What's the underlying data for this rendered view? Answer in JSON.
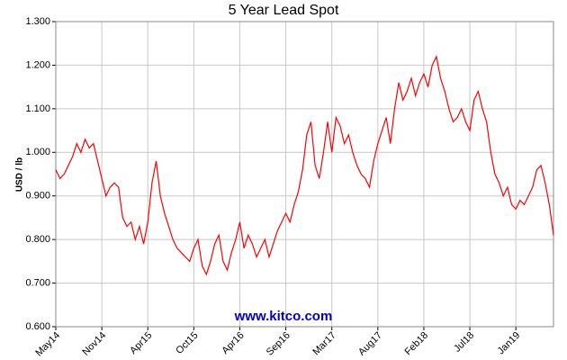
{
  "chart_data": {
    "type": "line",
    "title": "5 Year Lead Spot",
    "y_label": "USD / lb",
    "watermark": "www.kitco.com",
    "color": "#ff0000",
    "grid": true,
    "ylim": [
      0.6,
      1.3
    ],
    "yticks": [
      {
        "value": 0.6,
        "label": "0.600"
      },
      {
        "value": 0.7,
        "label": "0.700"
      },
      {
        "value": 0.8,
        "label": "0.800"
      },
      {
        "value": 0.9,
        "label": "0.900"
      },
      {
        "value": 1.0,
        "label": "1.000"
      },
      {
        "value": 1.1,
        "label": "1.100"
      },
      {
        "value": 1.2,
        "label": "1.200"
      },
      {
        "value": 1.3,
        "label": "1.300"
      }
    ],
    "categories": [
      "May14",
      null,
      null,
      null,
      null,
      null,
      null,
      null,
      null,
      null,
      null,
      "Nov14",
      null,
      null,
      null,
      null,
      null,
      null,
      null,
      null,
      null,
      null,
      "Apr15",
      null,
      null,
      null,
      null,
      null,
      null,
      null,
      null,
      null,
      null,
      "Oct15",
      null,
      null,
      null,
      null,
      null,
      null,
      null,
      null,
      null,
      null,
      "Apr16",
      null,
      null,
      null,
      null,
      null,
      null,
      null,
      null,
      null,
      null,
      "Sep16",
      null,
      null,
      null,
      null,
      null,
      null,
      null,
      null,
      null,
      null,
      "Mar17",
      null,
      null,
      null,
      null,
      null,
      null,
      null,
      null,
      null,
      null,
      "Aug17",
      null,
      null,
      null,
      null,
      null,
      null,
      null,
      null,
      null,
      null,
      "Feb18",
      null,
      null,
      null,
      null,
      null,
      null,
      null,
      null,
      null,
      null,
      "Jul18",
      null,
      null,
      null,
      null,
      null,
      null,
      null,
      null,
      null,
      null,
      "Jan19",
      null,
      null,
      null,
      null,
      null,
      null,
      null,
      null,
      null
    ],
    "values": [
      0.96,
      0.94,
      0.95,
      0.97,
      0.99,
      1.02,
      1.0,
      1.03,
      1.01,
      1.02,
      0.98,
      0.94,
      0.9,
      0.92,
      0.93,
      0.92,
      0.85,
      0.83,
      0.84,
      0.8,
      0.83,
      0.79,
      0.84,
      0.93,
      0.98,
      0.9,
      0.86,
      0.83,
      0.8,
      0.78,
      0.77,
      0.76,
      0.75,
      0.78,
      0.8,
      0.74,
      0.72,
      0.75,
      0.79,
      0.81,
      0.75,
      0.73,
      0.77,
      0.8,
      0.84,
      0.78,
      0.81,
      0.79,
      0.76,
      0.78,
      0.8,
      0.76,
      0.79,
      0.82,
      0.84,
      0.86,
      0.84,
      0.88,
      0.91,
      0.96,
      1.04,
      1.07,
      0.97,
      0.94,
      1.0,
      1.07,
      1.0,
      1.08,
      1.06,
      1.02,
      1.04,
      1.0,
      0.97,
      0.95,
      0.94,
      0.92,
      0.98,
      1.02,
      1.05,
      1.08,
      1.02,
      1.1,
      1.16,
      1.12,
      1.14,
      1.17,
      1.13,
      1.16,
      1.18,
      1.15,
      1.2,
      1.22,
      1.17,
      1.14,
      1.1,
      1.07,
      1.08,
      1.1,
      1.07,
      1.05,
      1.12,
      1.14,
      1.1,
      1.07,
      1.0,
      0.95,
      0.93,
      0.9,
      0.92,
      0.88,
      0.87,
      0.89,
      0.88,
      0.9,
      0.92,
      0.96,
      0.97,
      0.93,
      0.88,
      0.81
    ]
  }
}
